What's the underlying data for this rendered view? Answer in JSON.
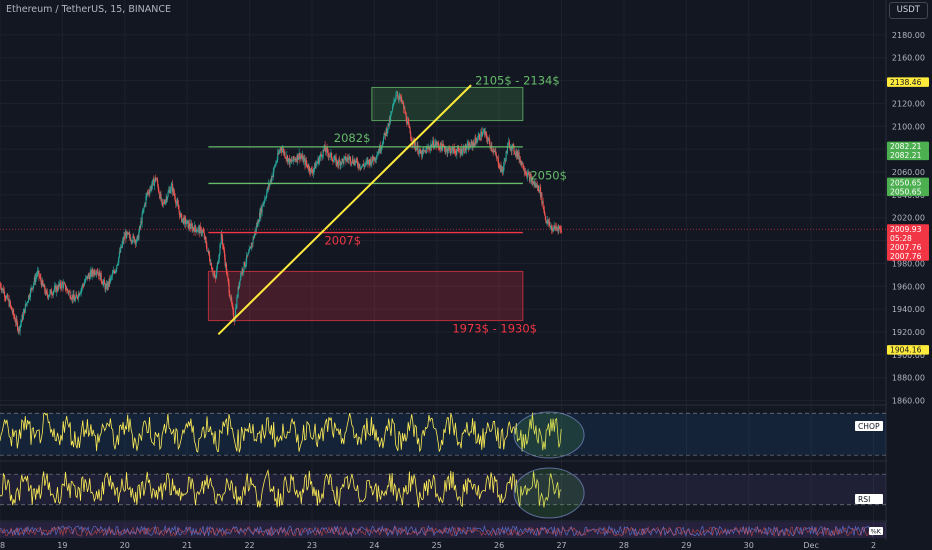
{
  "header": {
    "symbol": "Ethereum / TetherUS, 15, BINANCE",
    "currency": "USDT"
  },
  "colors": {
    "background": "#131722",
    "up": "#26a69a",
    "down": "#ef5350",
    "annotation_green": "#66bb6a",
    "annotation_red": "#f23645",
    "trendline": "#ffeb3b",
    "indicator": "#ffee58"
  },
  "chart_data": [
    {
      "type": "candlestick",
      "title": "Ethereum / TetherUS, 15, BINANCE",
      "y_ticks": [
        1860,
        1880,
        1900,
        1920,
        1940,
        1960,
        1980,
        2000,
        2020,
        2040,
        2060,
        2080,
        2100,
        2120,
        2140,
        2160,
        2180
      ],
      "ylim": [
        1857,
        2193
      ],
      "x_ticks": [
        "18",
        "19",
        "20",
        "21",
        "22",
        "23",
        "24",
        "25",
        "26",
        "27",
        "28",
        "29",
        "30",
        "Dec",
        "2"
      ],
      "x_tick_days": [
        18,
        19,
        20,
        21,
        22,
        23,
        24,
        25,
        26,
        27,
        28,
        29,
        30,
        31,
        32
      ],
      "xlim": [
        18.0,
        32.2
      ],
      "price_path": [
        [
          18.0,
          1962
        ],
        [
          18.15,
          1945
        ],
        [
          18.3,
          1922
        ],
        [
          18.45,
          1950
        ],
        [
          18.6,
          1972
        ],
        [
          18.75,
          1952
        ],
        [
          19.0,
          1962
        ],
        [
          19.2,
          1948
        ],
        [
          19.4,
          1968
        ],
        [
          19.55,
          1975
        ],
        [
          19.7,
          1958
        ],
        [
          19.85,
          1975
        ],
        [
          20.0,
          2005
        ],
        [
          20.2,
          2000
        ],
        [
          20.35,
          2040
        ],
        [
          20.5,
          2055
        ],
        [
          20.6,
          2030
        ],
        [
          20.75,
          2048
        ],
        [
          20.9,
          2020
        ],
        [
          21.05,
          2012
        ],
        [
          21.25,
          2008
        ],
        [
          21.45,
          1965
        ],
        [
          21.55,
          2005
        ],
        [
          21.65,
          1965
        ],
        [
          21.75,
          1930
        ],
        [
          21.85,
          1970
        ],
        [
          22.0,
          1990
        ],
        [
          22.2,
          2030
        ],
        [
          22.35,
          2055
        ],
        [
          22.5,
          2082
        ],
        [
          22.65,
          2068
        ],
        [
          22.8,
          2075
        ],
        [
          23.0,
          2060
        ],
        [
          23.2,
          2080
        ],
        [
          23.4,
          2068
        ],
        [
          23.6,
          2072
        ],
        [
          23.8,
          2065
        ],
        [
          24.0,
          2072
        ],
        [
          24.1,
          2082
        ],
        [
          24.25,
          2105
        ],
        [
          24.35,
          2130
        ],
        [
          24.45,
          2120
        ],
        [
          24.6,
          2088
        ],
        [
          24.75,
          2075
        ],
        [
          24.95,
          2085
        ],
        [
          25.15,
          2080
        ],
        [
          25.35,
          2078
        ],
        [
          25.55,
          2083
        ],
        [
          25.75,
          2095
        ],
        [
          25.9,
          2080
        ],
        [
          26.05,
          2060
        ],
        [
          26.15,
          2085
        ],
        [
          26.3,
          2075
        ],
        [
          26.45,
          2058
        ],
        [
          26.55,
          2050
        ],
        [
          26.65,
          2045
        ],
        [
          26.75,
          2018
        ],
        [
          26.85,
          2010
        ],
        [
          26.95,
          2012
        ],
        [
          27.0,
          2008
        ]
      ],
      "annotations": {
        "resistance_zone": {
          "label": "2105$ - 2134$",
          "from": 2105,
          "to": 2134,
          "x_start": 23.96,
          "x_end": 26.38
        },
        "support_zone": {
          "label": "1973$ - 1930$",
          "from": 1930,
          "to": 1973,
          "x_start": 21.34,
          "x_end": 26.38
        },
        "level_2082": {
          "label": "2082$",
          "value": 2082,
          "x_start": 21.34,
          "x_end": 26.38
        },
        "level_2050": {
          "label": "2050$",
          "value": 2050,
          "x_start": 21.34,
          "x_end": 26.38
        },
        "level_2007": {
          "label": "2007$",
          "value": 2007,
          "x_start": 21.34,
          "x_end": 26.38
        },
        "trendline": {
          "x": [
            21.5,
            25.55
          ],
          "y": [
            1918,
            2136
          ]
        }
      },
      "price_tags": [
        {
          "value": 2138.46,
          "label": "2138.46",
          "style": "yellow"
        },
        {
          "value": 2082.21,
          "label": "2082.21",
          "style": "green"
        },
        {
          "value": 2082.21,
          "label": "2082.21",
          "style": "green"
        },
        {
          "value": 2050.65,
          "label": "2050.65",
          "style": "green"
        },
        {
          "value": 2050.65,
          "label": "2050.65",
          "style": "green"
        },
        {
          "value": 2009.93,
          "label": "2009.93",
          "style": "red"
        },
        {
          "value": 2009.93,
          "label": "05:28",
          "style": "red"
        },
        {
          "value": 2007.76,
          "label": "2007.76",
          "style": "red"
        },
        {
          "value": 2007.76,
          "label": "2007.76",
          "style": "red"
        },
        {
          "value": 1904.16,
          "label": "1904.16",
          "style": "yellow"
        }
      ]
    },
    {
      "type": "line",
      "name": "CHOP",
      "y_ticks": [
        20,
        40,
        60,
        80
      ],
      "ylim": [
        18,
        85
      ],
      "bands": [
        24,
        76
      ],
      "highlight": "ellipse around the latest values"
    },
    {
      "type": "line",
      "name": "RSI",
      "y_ticks": [
        20,
        40,
        60,
        80
      ],
      "ylim": [
        10,
        86
      ],
      "bands": [
        30,
        70
      ],
      "highlight": "ellipse around the latest values"
    },
    {
      "type": "bar",
      "name": "%K",
      "label": "%K"
    }
  ]
}
